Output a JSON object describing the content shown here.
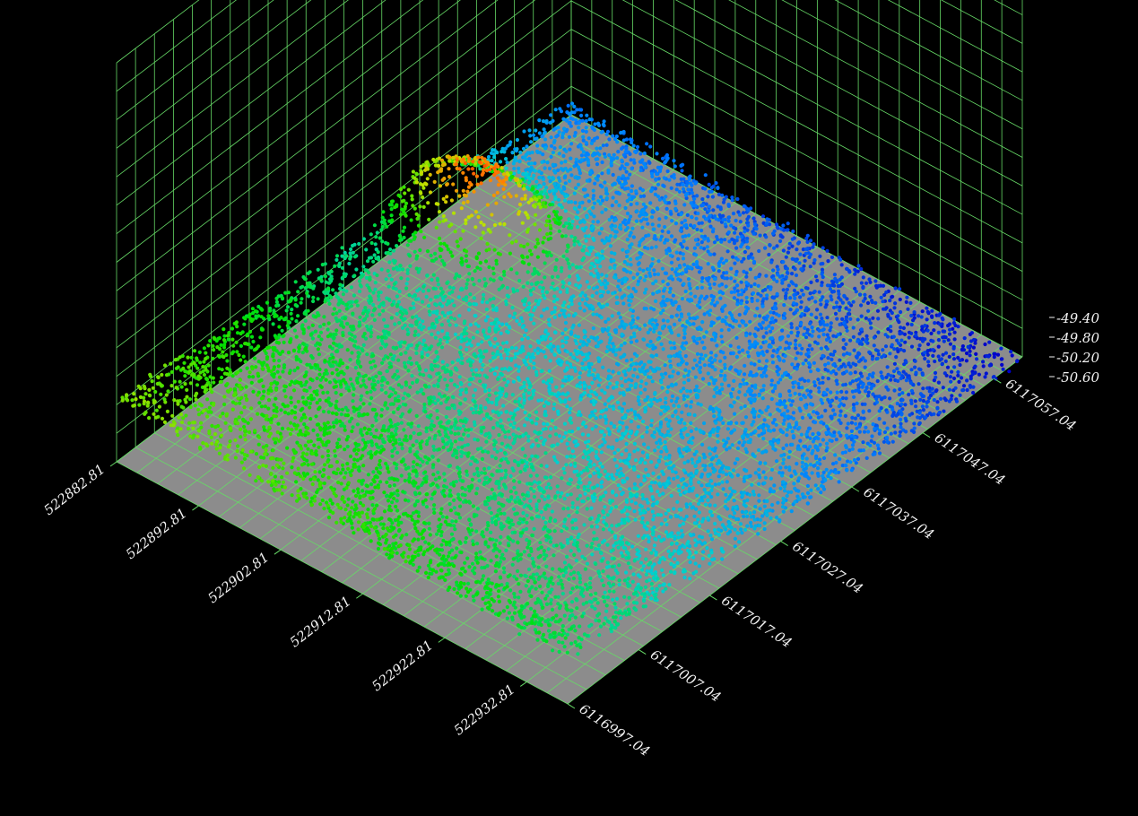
{
  "chart_data": {
    "type": "scatter",
    "title": "",
    "xlabel": "",
    "ylabel": "",
    "zlabel": "",
    "x_ticks": [
      "522882.81",
      "522892.81",
      "522902.81",
      "522912.81",
      "522922.81",
      "522932.81"
    ],
    "y_ticks": [
      "6116997.04",
      "6117007.04",
      "6117017.04",
      "6117027.04",
      "6117037.04",
      "6117047.04",
      "6117057.04"
    ],
    "z_ticks": [
      "-49.40",
      "-49.80",
      "-50.20",
      "-50.60"
    ],
    "xlim": [
      522882.81,
      522937.81
    ],
    "ylim": [
      6116997.04,
      6117061.04
    ],
    "zlim": [
      -50.7,
      -49.2
    ],
    "grid": true,
    "legend": "none",
    "surface": {
      "base_depth": -50.3,
      "slope_x": -0.004,
      "slope_y": -0.009,
      "peak": {
        "x": 522890.0,
        "y": 6117040.0,
        "height": 0.75,
        "spread_x": 6,
        "spread_y": 4
      },
      "point_count": 9000
    },
    "colors": {
      "background": "#000000",
      "grid": "#66d966",
      "floor": "#8c8c8c",
      "text": "#f2f2f2",
      "colormap": [
        "#0000c8",
        "#0080ff",
        "#00d0d0",
        "#00e000",
        "#c0e000",
        "#ff8000",
        "#ff0000"
      ]
    }
  }
}
